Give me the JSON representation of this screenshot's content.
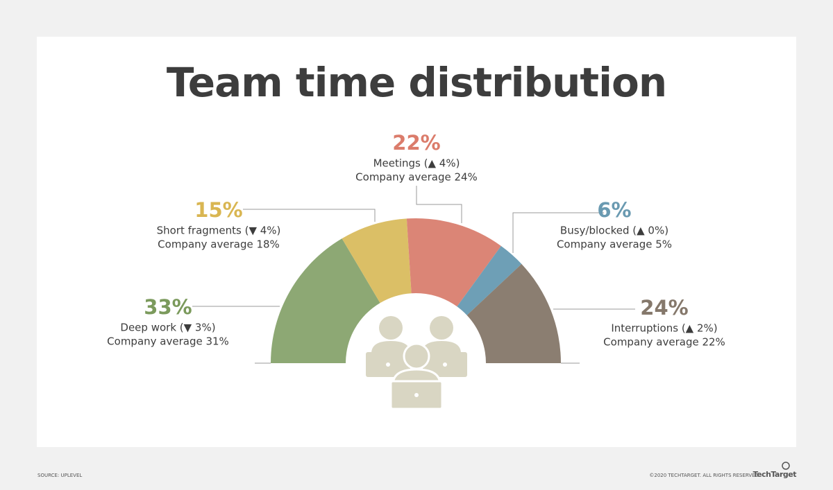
{
  "chart_data": {
    "type": "semi-donut",
    "title": "Team time distribution",
    "categories": [
      "Deep work (▼ 3%)",
      "Short fragments (▼ 4%)",
      "Meetings (▲ 4%)",
      "Busy/blocked (▲ 0%)",
      "Interruptions (▲ 2%)"
    ],
    "values": [
      33,
      15,
      22,
      6,
      24
    ],
    "value_labels": [
      "33%",
      "15%",
      "22%",
      "6%",
      "24%"
    ],
    "notes": [
      "Company average 31%",
      "Company average 18%",
      "Company average 24%",
      "Company average 5%",
      "Company average 22%"
    ],
    "colors": [
      "#8da874",
      "#dbbf66",
      "#db8576",
      "#6e9fb6",
      "#8b7e71"
    ],
    "label_colors": [
      "#7b9a5c",
      "#d9b652",
      "#db7c6b",
      "#6a9ab1",
      "#85786b"
    ]
  },
  "footer": {
    "source": "SOURCE: UPLEVEL",
    "copyright": "©2020 TECHTARGET. ALL RIGHTS RESERVED",
    "brand": "TechTarget"
  }
}
